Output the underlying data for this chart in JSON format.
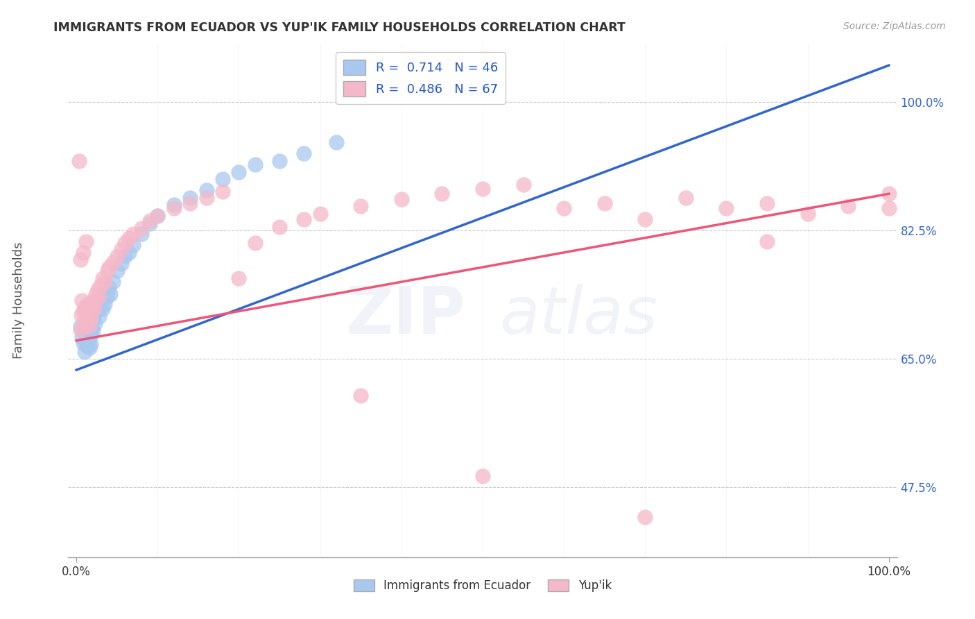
{
  "title": "IMMIGRANTS FROM ECUADOR VS YUP'IK FAMILY HOUSEHOLDS CORRELATION CHART",
  "source": "Source: ZipAtlas.com",
  "xlabel_blue": "Immigrants from Ecuador",
  "xlabel_pink": "Yup'ik",
  "ylabel": "Family Households",
  "blue_R": 0.714,
  "blue_N": 46,
  "pink_R": 0.486,
  "pink_N": 67,
  "blue_color": "#A8C8F0",
  "pink_color": "#F5B8C8",
  "blue_line_color": "#3366CC",
  "pink_line_color": "#EE5577",
  "watermark_zip": "ZIP",
  "watermark_atlas": "atlas",
  "xlim": [
    -0.01,
    1.01
  ],
  "ylim": [
    0.38,
    1.08
  ],
  "yticks": [
    0.475,
    0.65,
    0.825,
    1.0
  ],
  "ytick_labels": [
    "47.5%",
    "65.0%",
    "82.5%",
    "100.0%"
  ],
  "xtick_minor": [
    0.1,
    0.2,
    0.3,
    0.4,
    0.5,
    0.6,
    0.7,
    0.8,
    0.9
  ],
  "blue_line_x0": 0.0,
  "blue_line_y0": 0.635,
  "blue_line_x1": 1.0,
  "blue_line_y1": 1.05,
  "pink_line_x0": 0.0,
  "pink_line_y0": 0.675,
  "pink_line_x1": 1.0,
  "pink_line_y1": 0.875,
  "blue_scatter_x": [
    0.005,
    0.007,
    0.008,
    0.01,
    0.01,
    0.012,
    0.012,
    0.013,
    0.015,
    0.015,
    0.016,
    0.017,
    0.018,
    0.018,
    0.019,
    0.02,
    0.02,
    0.022,
    0.023,
    0.025,
    0.027,
    0.028,
    0.03,
    0.032,
    0.035,
    0.038,
    0.04,
    0.042,
    0.045,
    0.05,
    0.055,
    0.06,
    0.065,
    0.07,
    0.08,
    0.09,
    0.1,
    0.12,
    0.14,
    0.16,
    0.18,
    0.2,
    0.22,
    0.25,
    0.28,
    0.32
  ],
  "blue_scatter_y": [
    0.695,
    0.68,
    0.672,
    0.685,
    0.66,
    0.695,
    0.675,
    0.668,
    0.7,
    0.678,
    0.665,
    0.688,
    0.682,
    0.67,
    0.692,
    0.705,
    0.688,
    0.712,
    0.698,
    0.715,
    0.72,
    0.708,
    0.73,
    0.718,
    0.725,
    0.735,
    0.748,
    0.738,
    0.755,
    0.77,
    0.78,
    0.79,
    0.795,
    0.805,
    0.82,
    0.835,
    0.845,
    0.86,
    0.87,
    0.88,
    0.895,
    0.905,
    0.915,
    0.92,
    0.93,
    0.945
  ],
  "pink_scatter_x": [
    0.003,
    0.005,
    0.006,
    0.007,
    0.008,
    0.009,
    0.01,
    0.011,
    0.012,
    0.013,
    0.014,
    0.015,
    0.016,
    0.017,
    0.018,
    0.019,
    0.02,
    0.021,
    0.022,
    0.024,
    0.026,
    0.028,
    0.03,
    0.032,
    0.035,
    0.038,
    0.04,
    0.045,
    0.05,
    0.055,
    0.06,
    0.065,
    0.07,
    0.08,
    0.09,
    0.1,
    0.12,
    0.14,
    0.16,
    0.18,
    0.2,
    0.22,
    0.25,
    0.28,
    0.3,
    0.35,
    0.4,
    0.45,
    0.5,
    0.55,
    0.6,
    0.65,
    0.7,
    0.75,
    0.8,
    0.85,
    0.9,
    0.95,
    1.0,
    1.0,
    0.005,
    0.008,
    0.012,
    0.35,
    0.5,
    0.7,
    0.85
  ],
  "pink_scatter_y": [
    0.92,
    0.69,
    0.71,
    0.73,
    0.715,
    0.695,
    0.72,
    0.705,
    0.715,
    0.7,
    0.725,
    0.71,
    0.695,
    0.72,
    0.705,
    0.715,
    0.73,
    0.718,
    0.725,
    0.738,
    0.745,
    0.735,
    0.75,
    0.76,
    0.755,
    0.77,
    0.775,
    0.782,
    0.79,
    0.8,
    0.808,
    0.815,
    0.82,
    0.828,
    0.838,
    0.845,
    0.855,
    0.862,
    0.87,
    0.878,
    0.76,
    0.808,
    0.83,
    0.84,
    0.848,
    0.858,
    0.868,
    0.875,
    0.882,
    0.888,
    0.855,
    0.862,
    0.84,
    0.87,
    0.855,
    0.862,
    0.848,
    0.858,
    0.855,
    0.875,
    0.785,
    0.795,
    0.81,
    0.6,
    0.49,
    0.435,
    0.81
  ]
}
